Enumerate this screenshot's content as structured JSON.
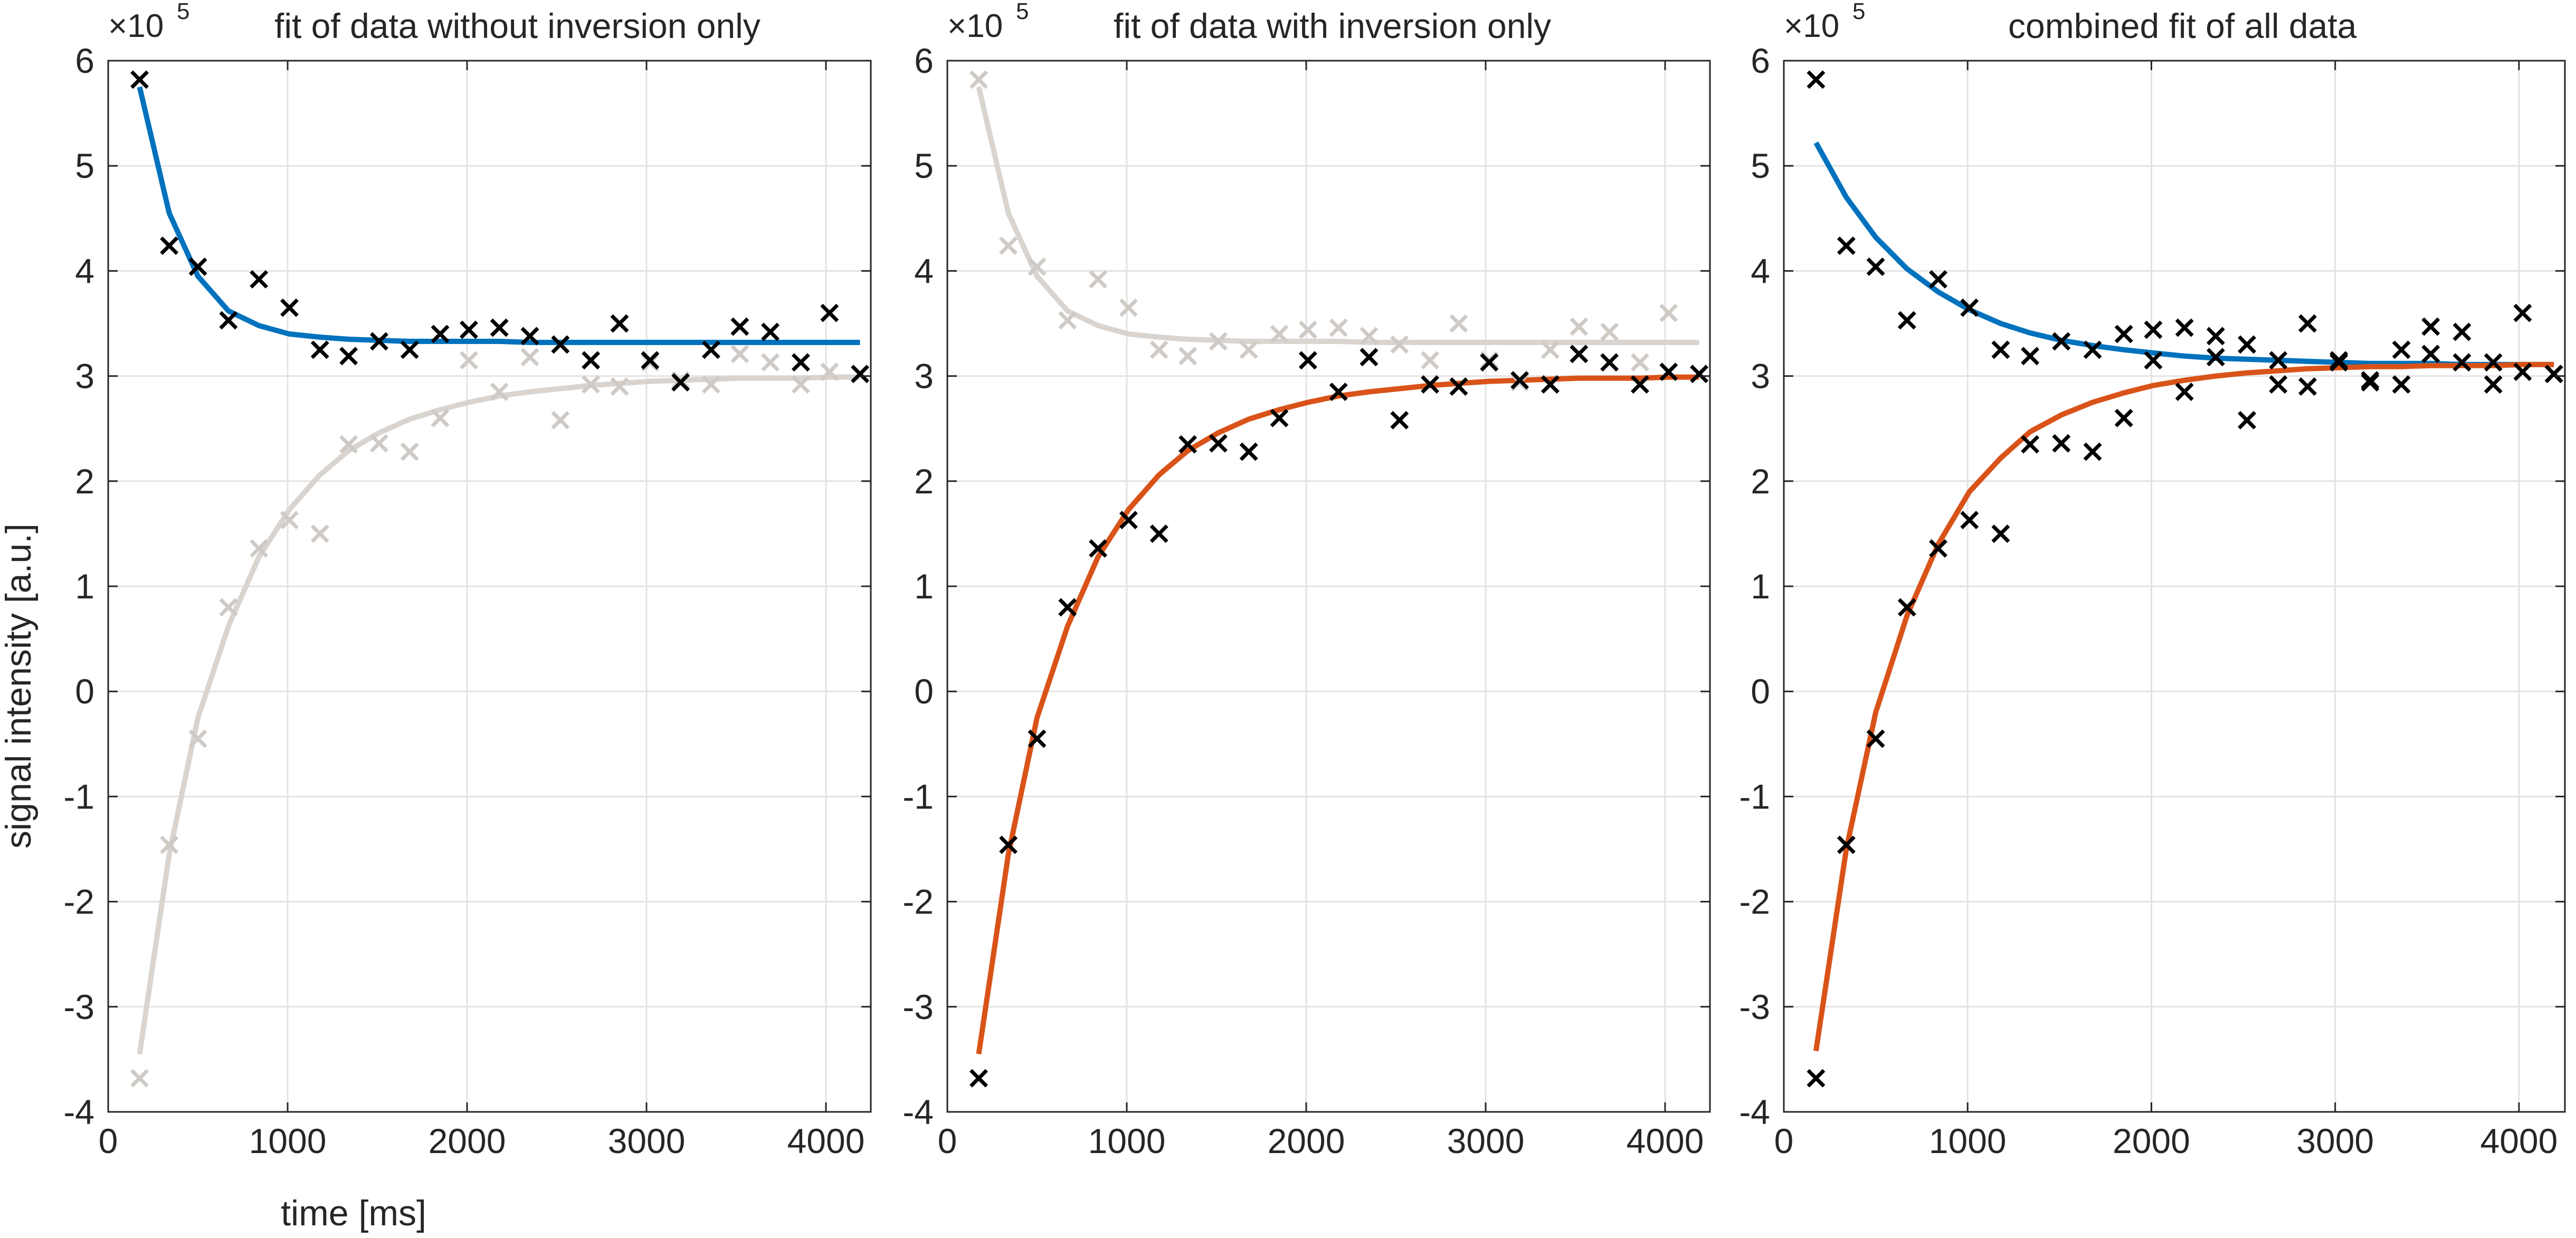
{
  "figure": {
    "ylabel": "signal intensity [a.u.]",
    "xlabel": "time [ms]"
  },
  "chart_data": [
    {
      "type": "scatter",
      "title": "fit of data without inversion only",
      "exponent_label_base": "×10",
      "exponent_label_power": "5",
      "xlim": [
        0,
        4250
      ],
      "ylim": [
        -4,
        6
      ],
      "xticks": [
        0,
        1000,
        2000,
        3000,
        4000
      ],
      "yticks": [
        -4,
        -3,
        -2,
        -1,
        0,
        1,
        2,
        3,
        4,
        5,
        6
      ],
      "grid": true,
      "highlighted": "upper",
      "fit_upper_color": "#0072BD"
    },
    {
      "type": "scatter",
      "title": "fit of data with inversion only",
      "exponent_label_base": "×10",
      "exponent_label_power": "5",
      "xlim": [
        0,
        4250
      ],
      "ylim": [
        -4,
        6
      ],
      "xticks": [
        0,
        1000,
        2000,
        3000,
        4000
      ],
      "yticks": [
        -4,
        -3,
        -2,
        -1,
        0,
        1,
        2,
        3,
        4,
        5,
        6
      ],
      "grid": true,
      "highlighted": "lower",
      "fit_lower_color": "#D95319"
    },
    {
      "type": "scatter",
      "title": "combined fit of all data",
      "exponent_label_base": "×10",
      "exponent_label_power": "5",
      "xlim": [
        0,
        4250
      ],
      "ylim": [
        -4,
        6
      ],
      "xticks": [
        0,
        1000,
        2000,
        3000,
        4000
      ],
      "yticks": [
        -4,
        -3,
        -2,
        -1,
        0,
        1,
        2,
        3,
        4,
        5,
        6
      ],
      "grid": true,
      "highlighted": "both",
      "fit_upper_color": "#0072BD",
      "fit_lower_color": "#D95319"
    }
  ],
  "shared_data": {
    "time_ms": [
      175,
      340,
      500,
      670,
      840,
      1010,
      1180,
      1340,
      1510,
      1680,
      1850,
      2010,
      2180,
      2350,
      2520,
      2690,
      2850,
      3020,
      3190,
      3360,
      3520,
      3690,
      3860,
      4020,
      4190
    ],
    "without_inversion": [
      5.82,
      4.24,
      4.04,
      3.53,
      3.92,
      3.65,
      3.25,
      3.19,
      3.33,
      3.25,
      3.4,
      3.44,
      3.46,
      3.38,
      3.3,
      3.15,
      3.5,
      3.15,
      2.94,
      3.25,
      3.47,
      3.42,
      3.13,
      3.6,
      3.02
    ],
    "with_inversion": [
      -3.68,
      -1.46,
      -0.45,
      0.8,
      1.36,
      1.63,
      1.5,
      2.35,
      2.36,
      2.28,
      2.6,
      3.15,
      2.85,
      3.18,
      2.58,
      2.92,
      2.9,
      3.13,
      2.96,
      2.92,
      3.21,
      3.13,
      2.92,
      3.04,
      3.02
    ],
    "fit_without_separate": [
      5.75,
      4.55,
      3.95,
      3.62,
      3.48,
      3.4,
      3.37,
      3.35,
      3.34,
      3.33,
      3.33,
      3.33,
      3.33,
      3.32,
      3.32,
      3.32,
      3.32,
      3.32,
      3.32,
      3.32,
      3.32,
      3.32,
      3.32,
      3.32,
      3.32
    ],
    "fit_with_separate": [
      -3.45,
      -1.55,
      -0.25,
      0.62,
      1.28,
      1.73,
      2.06,
      2.29,
      2.46,
      2.59,
      2.68,
      2.75,
      2.81,
      2.85,
      2.88,
      2.91,
      2.93,
      2.95,
      2.96,
      2.97,
      2.98,
      2.98,
      2.98,
      2.99,
      2.99
    ],
    "fit_without_combined": [
      5.22,
      4.7,
      4.32,
      4.02,
      3.8,
      3.63,
      3.5,
      3.41,
      3.34,
      3.29,
      3.25,
      3.22,
      3.19,
      3.17,
      3.16,
      3.15,
      3.14,
      3.13,
      3.12,
      3.12,
      3.12,
      3.11,
      3.11,
      3.11,
      3.11
    ],
    "fit_with_combined": [
      -3.42,
      -1.5,
      -0.2,
      0.72,
      1.4,
      1.9,
      2.22,
      2.47,
      2.63,
      2.75,
      2.84,
      2.91,
      2.96,
      3.0,
      3.03,
      3.05,
      3.07,
      3.08,
      3.09,
      3.09,
      3.1,
      3.1,
      3.1,
      3.11,
      3.11
    ],
    "marker_color_active": "#000000",
    "marker_color_inactive": "#CFCAC5",
    "fit_inactive_color": "#D9D4CF"
  }
}
